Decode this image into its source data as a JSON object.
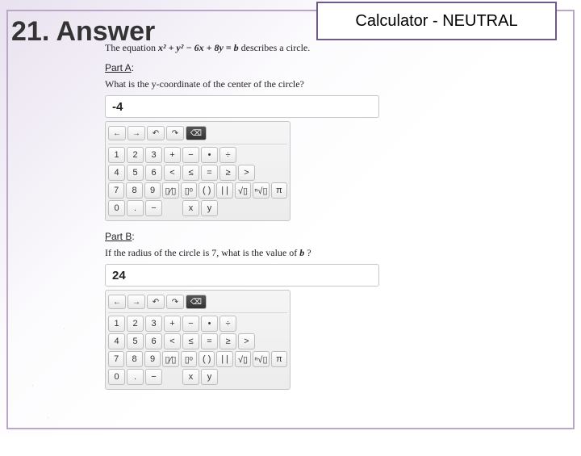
{
  "badge": {
    "text": "Calculator - NEUTRAL"
  },
  "title": "21. Answer",
  "problem": {
    "equation_prefix": "The equation ",
    "equation_math": "x² + y² − 6x + 8y = b",
    "equation_suffix": " describes a circle."
  },
  "partA": {
    "label": "Part A",
    "question": "What is the y-coordinate of the center of the circle?",
    "answer": "-4"
  },
  "partB": {
    "label": "Part B",
    "question_prefix": "If the radius of the circle is 7, what is the value of ",
    "question_var": "b",
    "question_suffix": "?",
    "answer": "24"
  },
  "toolbar": {
    "left": "←",
    "right": "→",
    "undo": "↶",
    "redo": "↷",
    "del": "⌫"
  },
  "keypad": {
    "rows": [
      [
        "1",
        "2",
        "3",
        "+",
        "−",
        "•",
        "÷"
      ],
      [
        "4",
        "5",
        "6",
        "<",
        "≤",
        "=",
        "≥",
        ">"
      ],
      [
        "7",
        "8",
        "9",
        "▯⁄▯",
        "▯ᵒ",
        "( )",
        "| |",
        "√▯",
        "ⁿ√▯",
        "π"
      ],
      [
        "0",
        ".",
        "−",
        "",
        "x",
        "y"
      ]
    ]
  },
  "colors": {
    "frame_border": "#b9a6c9",
    "badge_border": "#6c5a87",
    "key_border": "#bdbdbd"
  }
}
